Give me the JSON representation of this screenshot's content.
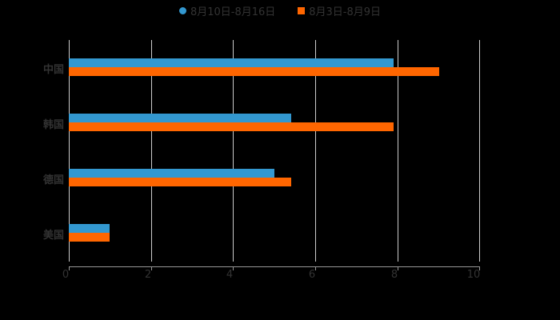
{
  "legend": [
    {
      "label": "8月10日-8月16日",
      "color": "#3398d0"
    },
    {
      "label": "8月3日-8月9日",
      "color": "#ff6600"
    }
  ],
  "chart_data": {
    "type": "bar",
    "orientation": "horizontal",
    "title": "",
    "xlabel": "",
    "ylabel": "",
    "categories": [
      "中国",
      "韩国",
      "德国",
      "美国"
    ],
    "series": [
      {
        "name": "8月10日-8月16日",
        "color": "#3398d0",
        "values": [
          7.9,
          5.4,
          5.0,
          1.0
        ]
      },
      {
        "name": "8月3日-8月9日",
        "color": "#ff6600",
        "values": [
          9.0,
          7.9,
          5.4,
          1.0
        ]
      }
    ],
    "xlim": [
      0,
      10
    ],
    "xticks": [
      "0",
      "2",
      "4",
      "6",
      "8",
      "10"
    ],
    "grid": true,
    "legend_position": "top"
  }
}
